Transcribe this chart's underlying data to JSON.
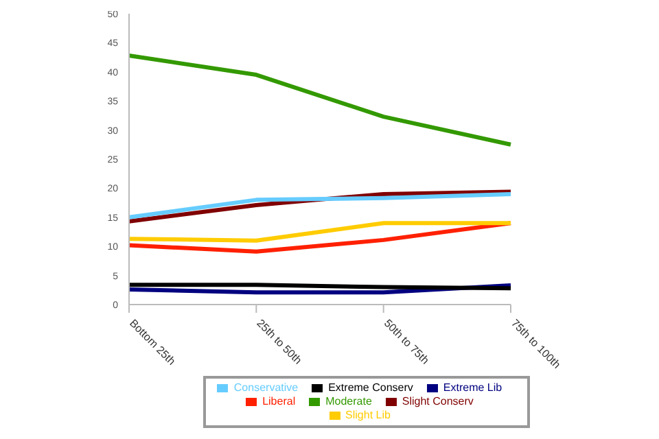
{
  "chart_data": {
    "type": "line",
    "categories": [
      "Bottom 25th",
      "25th to 50th",
      "50th to 75th",
      "75th to 100th"
    ],
    "series": [
      {
        "name": "Extreme Lib",
        "color": "#000080",
        "values": [
          2.6,
          2.1,
          2.1,
          3.3
        ]
      },
      {
        "name": "Liberal",
        "color": "#ff2000",
        "values": [
          10.2,
          9.1,
          11.1,
          14
        ]
      },
      {
        "name": "Slight Lib",
        "color": "#ffcc00",
        "values": [
          11.3,
          11,
          14,
          14
        ]
      },
      {
        "name": "Moderate",
        "color": "#339900",
        "values": [
          42.8,
          39.5,
          32.3,
          27.5
        ]
      },
      {
        "name": "Slight Conserv",
        "color": "#800000",
        "values": [
          14.3,
          17.1,
          19,
          19.4
        ]
      },
      {
        "name": "Conservative",
        "color": "#66ccff",
        "values": [
          15,
          18,
          18.3,
          19
        ]
      },
      {
        "name": "Extreme Conserv",
        "color": "#000000",
        "values": [
          3.4,
          3.4,
          3,
          2.8
        ]
      }
    ],
    "ylim": [
      0,
      50
    ],
    "yticks": [
      0,
      5,
      10,
      15,
      20,
      25,
      30,
      35,
      40,
      45,
      50
    ],
    "grid": false,
    "legend": "bottom",
    "marker": "none",
    "line_style": "solid"
  }
}
